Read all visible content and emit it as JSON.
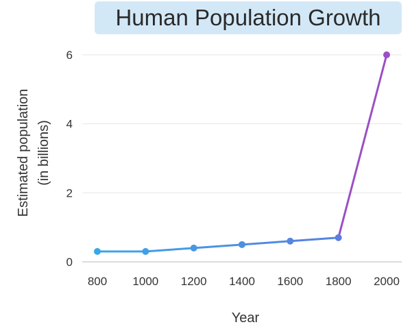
{
  "title_bg": "#d3e8f7",
  "chart_data": {
    "type": "line",
    "title": "Human Population Growth",
    "xlabel": "Year",
    "ylabel_lines": [
      "Estimated population",
      "(in billions)"
    ],
    "x_ticks": [
      "800",
      "1000",
      "1200",
      "1400",
      "1600",
      "1800",
      "2000"
    ],
    "y_ticks": [
      "0",
      "2",
      "4",
      "6"
    ],
    "xlim": [
      800,
      2000
    ],
    "ylim": [
      0,
      6
    ],
    "grid": true,
    "x": [
      800,
      1000,
      1200,
      1400,
      1600,
      1800,
      2000
    ],
    "y": [
      0.3,
      0.3,
      0.4,
      0.5,
      0.6,
      0.7,
      6.0
    ],
    "colors": {
      "line_start": "#3aa7e8",
      "line_mid": "#5a7fe0",
      "line_end": "#9b4fc4",
      "grid": "#e6e6e6",
      "axis": "#cfcfcf"
    }
  }
}
